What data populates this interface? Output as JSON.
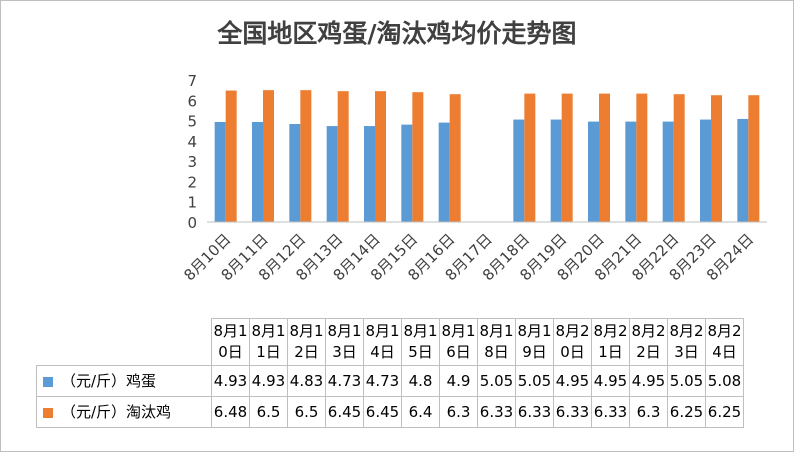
{
  "chart_data": {
    "type": "bar",
    "title": "全国地区鸡蛋/淘汰鸡均价走势图",
    "categories": [
      "8月10日",
      "8月11日",
      "8月12日",
      "8月13日",
      "8月14日",
      "8月15日",
      "8月16日",
      "8月17日",
      "8月18日",
      "8月19日",
      "8月20日",
      "8月21日",
      "8月22日",
      "8月23日",
      "8月24日"
    ],
    "table_categories": [
      "8月10日",
      "8月11日",
      "8月12日",
      "8月13日",
      "8月14日",
      "8月15日",
      "8月16日",
      "8月18日",
      "8月19日",
      "8月20日",
      "8月21日",
      "8月22日",
      "8月23日",
      "8月24日"
    ],
    "series": [
      {
        "name": "（元/斤）鸡蛋",
        "color": "#5b9bd5",
        "values": [
          4.93,
          4.93,
          4.83,
          4.73,
          4.73,
          4.8,
          4.9,
          null,
          5.05,
          5.05,
          4.95,
          4.95,
          4.95,
          5.05,
          5.08
        ],
        "table_values": [
          "4.93",
          "4.93",
          "4.83",
          "4.73",
          "4.73",
          "4.8",
          "4.9",
          "5.05",
          "5.05",
          "4.95",
          "4.95",
          "4.95",
          "5.05",
          "5.08"
        ]
      },
      {
        "name": "（元/斤）淘汰鸡",
        "color": "#ed7d31",
        "values": [
          6.48,
          6.5,
          6.5,
          6.45,
          6.45,
          6.4,
          6.3,
          null,
          6.33,
          6.33,
          6.33,
          6.33,
          6.3,
          6.25,
          6.25
        ],
        "table_values": [
          "6.48",
          "6.5",
          "6.5",
          "6.45",
          "6.45",
          "6.4",
          "6.3",
          "6.33",
          "6.33",
          "6.33",
          "6.33",
          "6.3",
          "6.25",
          "6.25"
        ]
      }
    ],
    "ylim": [
      0,
      7
    ],
    "yticks": [
      "0",
      "1",
      "2",
      "3",
      "4",
      "5",
      "6",
      "7"
    ],
    "grid": false,
    "legend": "data-table"
  }
}
